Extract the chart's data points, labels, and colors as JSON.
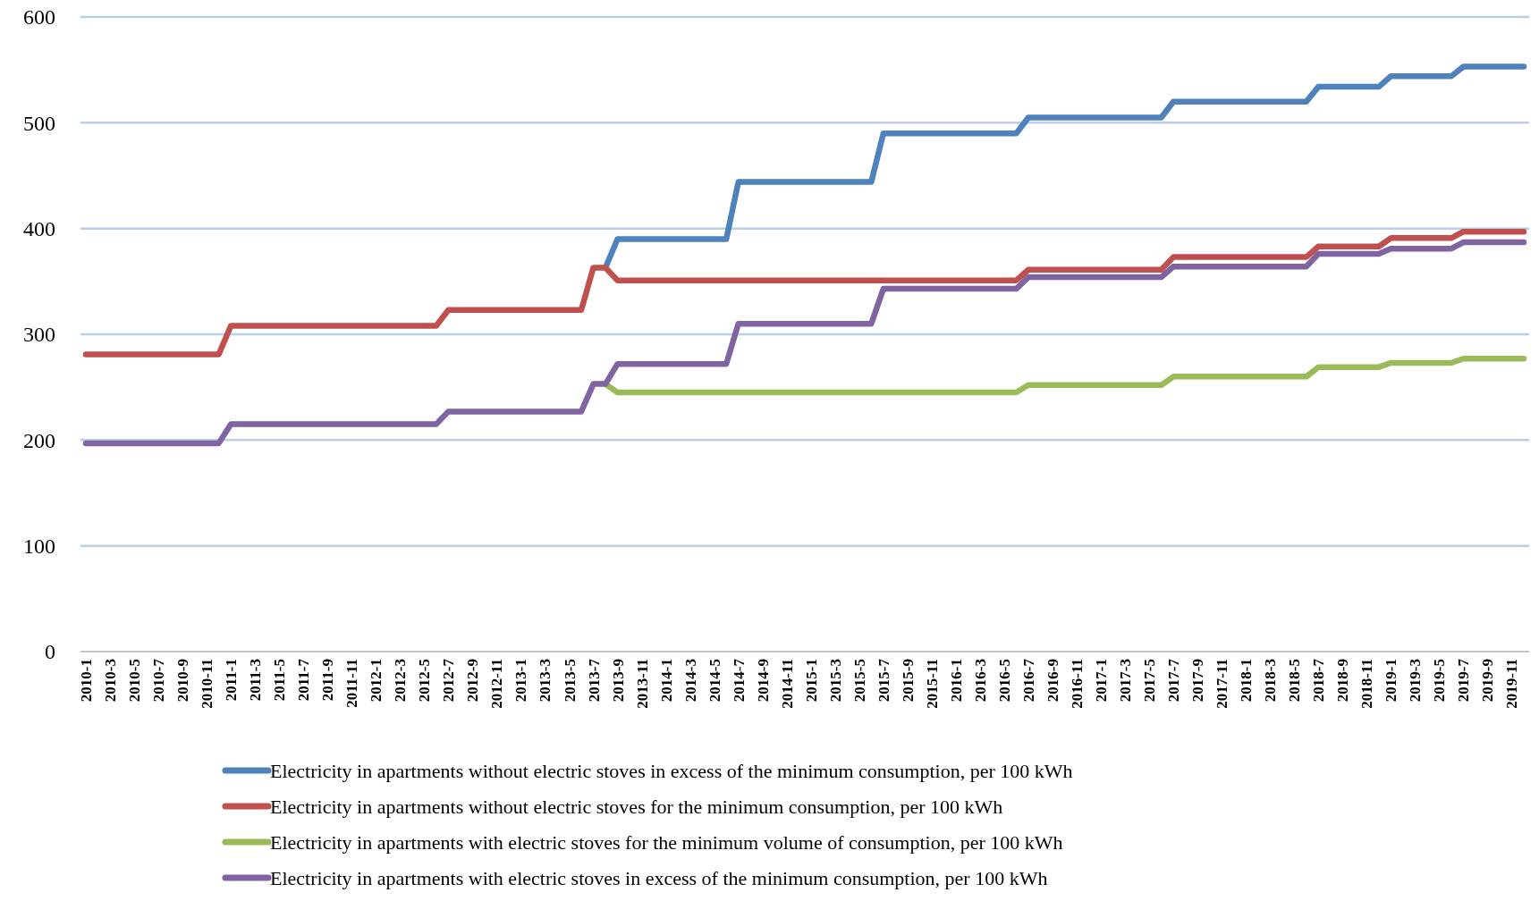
{
  "chart_data": {
    "type": "line",
    "categories": [
      "2010-1",
      null,
      "2010-3",
      null,
      "2010-5",
      null,
      "2010-7",
      null,
      "2010-9",
      null,
      "2010-11",
      null,
      "2011-1",
      null,
      "2011-3",
      null,
      "2011-5",
      null,
      "2011-7",
      null,
      "2011-9",
      null,
      "2011-11",
      null,
      "2012-1",
      null,
      "2012-3",
      null,
      "2012-5",
      null,
      "2012-7",
      null,
      "2012-9",
      null,
      "2012-11",
      null,
      "2013-1",
      null,
      "2013-3",
      null,
      "2013-5",
      null,
      "2013-7",
      null,
      "2013-9",
      null,
      "2013-11",
      null,
      "2014-1",
      null,
      "2014-3",
      null,
      "2014-5",
      null,
      "2014-7",
      null,
      "2014-9",
      null,
      "2014-11",
      null,
      "2015-1",
      null,
      "2015-3",
      null,
      "2015-5",
      null,
      "2015-7",
      null,
      "2015-9",
      null,
      "2015-11",
      null,
      "2016-1",
      null,
      "2016-3",
      null,
      "2016-5",
      null,
      "2016-7",
      null,
      "2016-9",
      null,
      "2016-11",
      null,
      "2017-1",
      null,
      "2017-3",
      null,
      "2017-5",
      null,
      "2017-7",
      null,
      "2017-9",
      null,
      "2017-11",
      null,
      "2018-1",
      null,
      "2018-3",
      null,
      "2018-5",
      null,
      "2018-7",
      null,
      "2018-9",
      null,
      "2018-11",
      null,
      "2019-1",
      null,
      "2019-3",
      null,
      "2019-5",
      null,
      "2019-7",
      null,
      "2019-9",
      null,
      "2019-11",
      null
    ],
    "series": [
      {
        "name": "Electricity in apartments without electric stoves in excess of the minimum consumption, per 100 kWh",
        "color": "#4f81bd",
        "values": [
          null,
          null,
          null,
          null,
          null,
          null,
          null,
          null,
          null,
          null,
          null,
          null,
          null,
          null,
          null,
          null,
          null,
          null,
          null,
          null,
          null,
          null,
          null,
          null,
          null,
          null,
          null,
          null,
          null,
          null,
          null,
          null,
          null,
          null,
          null,
          null,
          null,
          null,
          null,
          null,
          null,
          null,
          null,
          363,
          390,
          390,
          390,
          390,
          390,
          390,
          390,
          390,
          390,
          390,
          444,
          444,
          444,
          444,
          444,
          444,
          444,
          444,
          444,
          444,
          444,
          444,
          490,
          490,
          490,
          490,
          490,
          490,
          490,
          490,
          490,
          490,
          490,
          490,
          505,
          505,
          505,
          505,
          505,
          505,
          505,
          505,
          505,
          505,
          505,
          505,
          520,
          520,
          520,
          520,
          520,
          520,
          520,
          520,
          520,
          520,
          520,
          520,
          534,
          534,
          534,
          534,
          534,
          534,
          544,
          544,
          544,
          544,
          544,
          544,
          553,
          553,
          553,
          553,
          553,
          553
        ]
      },
      {
        "name": "Electricity in apartments without electric stoves for the minimum consumption, per 100 kWh",
        "color": "#c0504d",
        "values": [
          281,
          281,
          281,
          281,
          281,
          281,
          281,
          281,
          281,
          281,
          281,
          281,
          308,
          308,
          308,
          308,
          308,
          308,
          308,
          308,
          308,
          308,
          308,
          308,
          308,
          308,
          308,
          308,
          308,
          308,
          323,
          323,
          323,
          323,
          323,
          323,
          323,
          323,
          323,
          323,
          323,
          323,
          363,
          363,
          351,
          351,
          351,
          351,
          351,
          351,
          351,
          351,
          351,
          351,
          351,
          351,
          351,
          351,
          351,
          351,
          351,
          351,
          351,
          351,
          351,
          351,
          351,
          351,
          351,
          351,
          351,
          351,
          351,
          351,
          351,
          351,
          351,
          351,
          361,
          361,
          361,
          361,
          361,
          361,
          361,
          361,
          361,
          361,
          361,
          361,
          373,
          373,
          373,
          373,
          373,
          373,
          373,
          373,
          373,
          373,
          373,
          373,
          383,
          383,
          383,
          383,
          383,
          383,
          391,
          391,
          391,
          391,
          391,
          391,
          397,
          397,
          397,
          397,
          397,
          397
        ]
      },
      {
        "name": "Electricity in apartments with electric stoves for the minimum volume of consumption, per 100 kWh",
        "color": "#9bbb59",
        "values": [
          null,
          null,
          null,
          null,
          null,
          null,
          null,
          null,
          null,
          null,
          null,
          null,
          null,
          null,
          null,
          null,
          null,
          null,
          null,
          null,
          null,
          null,
          null,
          null,
          null,
          null,
          null,
          null,
          null,
          null,
          null,
          null,
          null,
          null,
          null,
          null,
          null,
          null,
          null,
          null,
          null,
          null,
          null,
          253,
          245,
          245,
          245,
          245,
          245,
          245,
          245,
          245,
          245,
          245,
          245,
          245,
          245,
          245,
          245,
          245,
          245,
          245,
          245,
          245,
          245,
          245,
          245,
          245,
          245,
          245,
          245,
          245,
          245,
          245,
          245,
          245,
          245,
          245,
          252,
          252,
          252,
          252,
          252,
          252,
          252,
          252,
          252,
          252,
          252,
          252,
          260,
          260,
          260,
          260,
          260,
          260,
          260,
          260,
          260,
          260,
          260,
          260,
          269,
          269,
          269,
          269,
          269,
          269,
          273,
          273,
          273,
          273,
          273,
          273,
          277,
          277,
          277,
          277,
          277,
          277
        ]
      },
      {
        "name": "Electricity in apartments with electric stoves in excess of the minimum consumption, per 100 kWh",
        "color": "#8064a2",
        "values": [
          197,
          197,
          197,
          197,
          197,
          197,
          197,
          197,
          197,
          197,
          197,
          197,
          215,
          215,
          215,
          215,
          215,
          215,
          215,
          215,
          215,
          215,
          215,
          215,
          215,
          215,
          215,
          215,
          215,
          215,
          227,
          227,
          227,
          227,
          227,
          227,
          227,
          227,
          227,
          227,
          227,
          227,
          253,
          253,
          272,
          272,
          272,
          272,
          272,
          272,
          272,
          272,
          272,
          272,
          310,
          310,
          310,
          310,
          310,
          310,
          310,
          310,
          310,
          310,
          310,
          310,
          343,
          343,
          343,
          343,
          343,
          343,
          343,
          343,
          343,
          343,
          343,
          343,
          354,
          354,
          354,
          354,
          354,
          354,
          354,
          354,
          354,
          354,
          354,
          354,
          364,
          364,
          364,
          364,
          364,
          364,
          364,
          364,
          364,
          364,
          364,
          364,
          376,
          376,
          376,
          376,
          376,
          376,
          381,
          381,
          381,
          381,
          381,
          381,
          387,
          387,
          387,
          387,
          387,
          387
        ]
      }
    ],
    "ylim": [
      0,
      600
    ],
    "yticks": [
      0,
      100,
      200,
      300,
      400,
      500,
      600
    ],
    "grid": "y",
    "legend": "bottom",
    "marker": "none",
    "line_style": "solid"
  }
}
